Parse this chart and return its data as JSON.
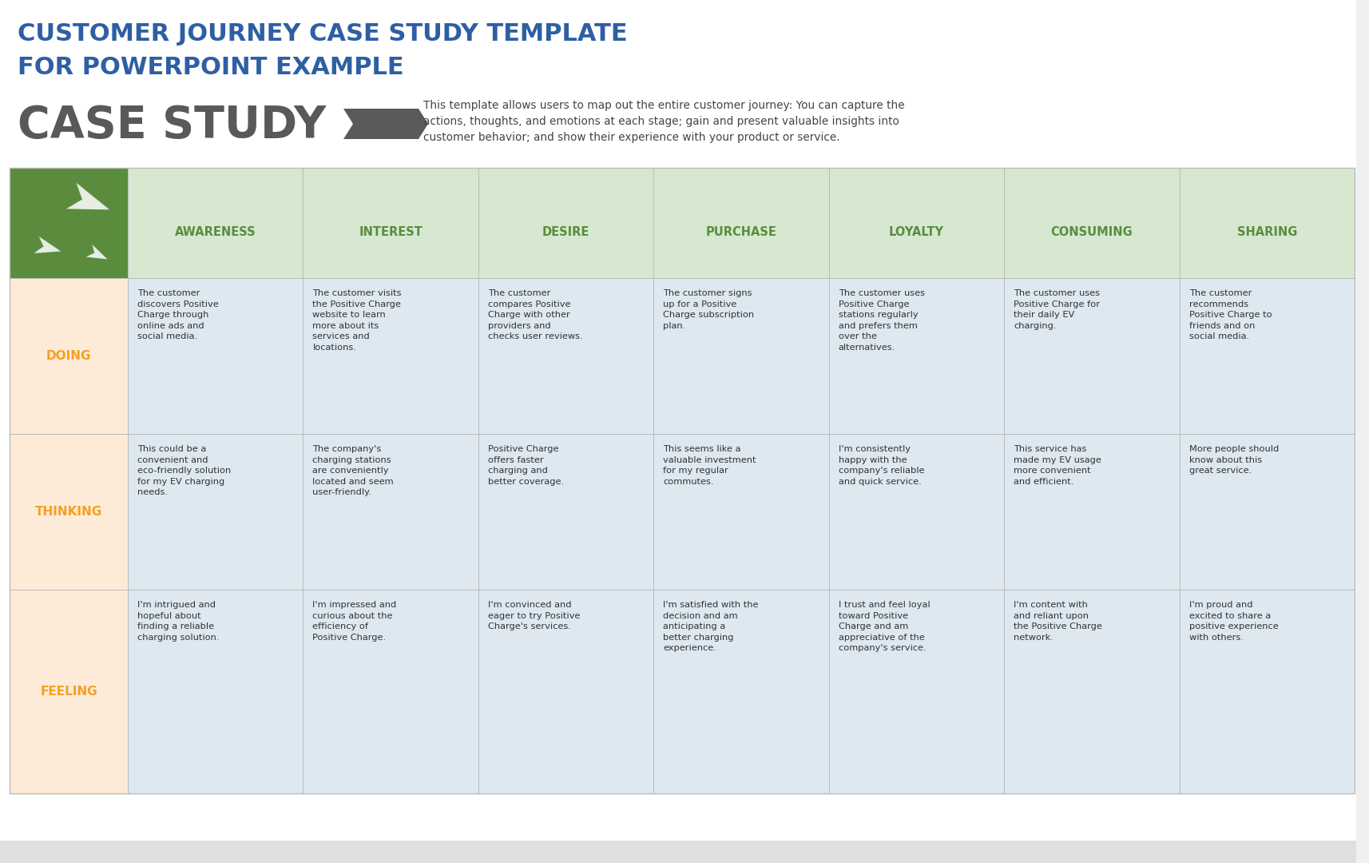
{
  "title_line1": "CUSTOMER JOURNEY CASE STUDY TEMPLATE",
  "title_line2": "FOR POWERPOINT EXAMPLE",
  "title_color": "#2E5FA3",
  "case_study_text": "CASE STUDY",
  "case_study_color": "#595959",
  "description": "This template allows users to map out the entire customer journey: You can capture the\nactions, thoughts, and emotions at each stage; gain and present valuable insights into\ncustomer behavior; and show their experience with your product or service.",
  "description_color": "#444444",
  "bg_color": "#FFFFFF",
  "header_bg": "#D6E8D0",
  "icon_cell_bg": "#5B8C3E",
  "row_label_color": "#F4A024",
  "row_bg": "#FDEBD8",
  "col_data_bg": "#DDE8F0",
  "columns": [
    "AWARENESS",
    "INTEREST",
    "DESIRE",
    "PURCHASE",
    "LOYALTY",
    "CONSUMING",
    "SHARING"
  ],
  "col_header_color": "#5B8C3E",
  "doing_texts": [
    "The customer\ndiscovers Positive\nCharge through\nonline ads and\nsocial media.",
    "The customer visits\nthe Positive Charge\nwebsite to learn\nmore about its\nservices and\nlocations.",
    "The customer\ncompares Positive\nCharge with other\nproviders and\nchecks user reviews.",
    "The customer signs\nup for a Positive\nCharge subscription\nplan.",
    "The customer uses\nPositive Charge\nstations regularly\nand prefers them\nover the\nalternatives.",
    "The customer uses\nPositive Charge for\ntheir daily EV\ncharging.",
    "The customer\nrecommends\nPositive Charge to\nfriends and on\nsocial media."
  ],
  "thinking_texts": [
    "This could be a\nconvenient and\neco-friendly solution\nfor my EV charging\nneeds.",
    "The company's\ncharging stations\nare conveniently\nlocated and seem\nuser-friendly.",
    "Positive Charge\noffers faster\ncharging and\nbetter coverage.",
    "This seems like a\nvaluable investment\nfor my regular\ncommutes.",
    "I'm consistently\nhappy with the\ncompany's reliable\nand quick service.",
    "This service has\nmade my EV usage\nmore convenient\nand efficient.",
    "More people should\nknow about this\ngreat service."
  ],
  "feeling_texts": [
    "I'm intrigued and\nhopeful about\nfinding a reliable\ncharging solution.",
    "I'm impressed and\ncurious about the\nefficiency of\nPositive Charge.",
    "I'm convinced and\neager to try Positive\nCharge's services.",
    "I'm satisfied with the\ndecision and am\nanticipating a\nbetter charging\nexperience.",
    "I trust and feel loyal\ntoward Positive\nCharge and am\nappreciative of the\ncompany's service.",
    "I'm content with\nand reliant upon\nthe Positive Charge\nnetwork.",
    "I'm proud and\nexcited to share a\npositive experience\nwith others."
  ],
  "cell_text_color": "#333333",
  "cell_text_size": 8.2,
  "grid_line_color": "#BBBBBB",
  "arrow_dark": "#555555",
  "arrow_light": "#888888"
}
